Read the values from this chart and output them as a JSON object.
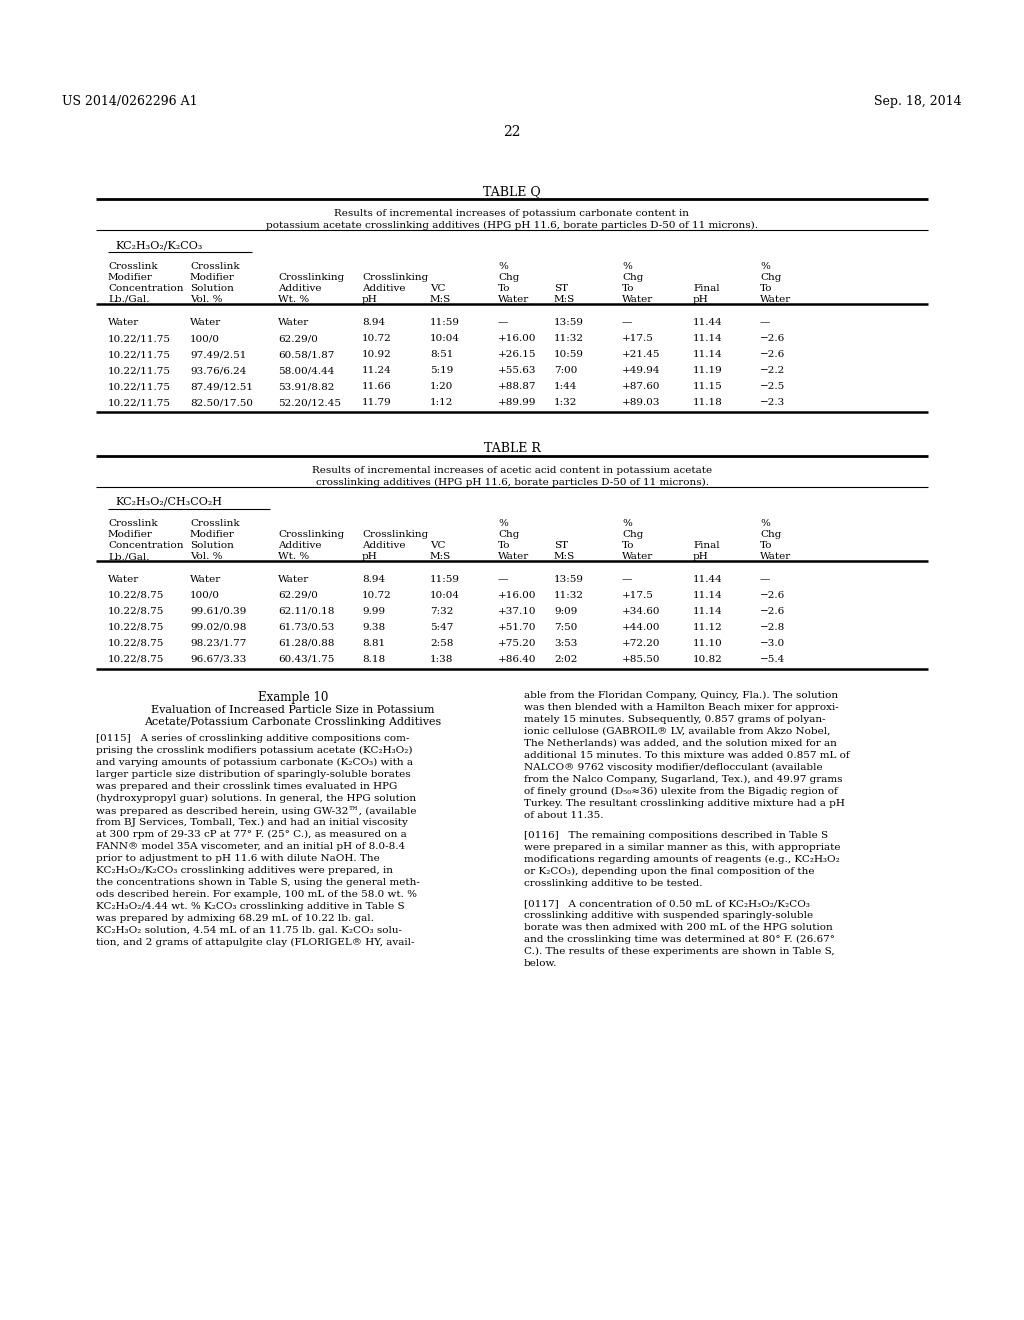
{
  "page_number": "22",
  "header_left": "US 2014/0262296 A1",
  "header_right": "Sep. 18, 2014",
  "background_color": "#ffffff",
  "table_q_title": "TABLE Q",
  "table_q_subtitle1": "Results of incremental increases of potassium carbonate content in",
  "table_q_subtitle2": "potassium acetate crosslinking additives (HPG pH 11.6, borate particles D-50 of 11 microns).",
  "table_q_label": "KC₂H₃O₂/K₂CO₃",
  "table_r_title": "TABLE R",
  "table_r_subtitle1": "Results of incremental increases of acetic acid content in potassium acetate",
  "table_r_subtitle2": "crosslinking additives (HPG pH 11.6, borate particles D-50 of 11 microns).",
  "table_r_label": "KC₂H₃O₂/CH₃CO₂H",
  "col_headers_l1": [
    "Crosslink",
    "Crosslink",
    "",
    "",
    "",
    "%",
    "",
    "%",
    "",
    "%"
  ],
  "col_headers_l2": [
    "Modifier",
    "Modifier",
    "Crosslinking",
    "Crosslinking",
    "",
    "Chg",
    "",
    "Chg",
    "",
    "Chg"
  ],
  "col_headers_l3": [
    "Concentration",
    "Solution",
    "Additive",
    "Additive",
    "VC",
    "To",
    "ST",
    "To",
    "Final",
    "To"
  ],
  "col_headers_l4": [
    "Lb./Gal.",
    "Vol. %",
    "Wt. %",
    "pH",
    "M:S",
    "Water",
    "M:S",
    "Water",
    "pH",
    "Water"
  ],
  "table_q_data": [
    [
      "Water",
      "Water",
      "Water",
      "8.94",
      "11:59",
      "—",
      "13:59",
      "—",
      "11.44",
      "—"
    ],
    [
      "10.22/11.75",
      "100/0",
      "62.29/0",
      "10.72",
      "10:04",
      "+16.00",
      "11:32",
      "+17.5",
      "11.14",
      "−2.6"
    ],
    [
      "10.22/11.75",
      "97.49/2.51",
      "60.58/1.87",
      "10.92",
      "8:51",
      "+26.15",
      "10:59",
      "+21.45",
      "11.14",
      "−2.6"
    ],
    [
      "10.22/11.75",
      "93.76/6.24",
      "58.00/4.44",
      "11.24",
      "5:19",
      "+55.63",
      "7:00",
      "+49.94",
      "11.19",
      "−2.2"
    ],
    [
      "10.22/11.75",
      "87.49/12.51",
      "53.91/8.82",
      "11.66",
      "1:20",
      "+88.87",
      "1:44",
      "+87.60",
      "11.15",
      "−2.5"
    ],
    [
      "10.22/11.75",
      "82.50/17.50",
      "52.20/12.45",
      "11.79",
      "1:12",
      "+89.99",
      "1:32",
      "+89.03",
      "11.18",
      "−2.3"
    ]
  ],
  "table_r_data": [
    [
      "Water",
      "Water",
      "Water",
      "8.94",
      "11:59",
      "—",
      "13:59",
      "—",
      "11.44",
      "—"
    ],
    [
      "10.22/8.75",
      "100/0",
      "62.29/0",
      "10.72",
      "10:04",
      "+16.00",
      "11:32",
      "+17.5",
      "11.14",
      "−2.6"
    ],
    [
      "10.22/8.75",
      "99.61/0.39",
      "62.11/0.18",
      "9.99",
      "7:32",
      "+37.10",
      "9:09",
      "+34.60",
      "11.14",
      "−2.6"
    ],
    [
      "10.22/8.75",
      "99.02/0.98",
      "61.73/0.53",
      "9.38",
      "5:47",
      "+51.70",
      "7:50",
      "+44.00",
      "11.12",
      "−2.8"
    ],
    [
      "10.22/8.75",
      "98.23/1.77",
      "61.28/0.88",
      "8.81",
      "2:58",
      "+75.20",
      "3:53",
      "+72.20",
      "11.10",
      "−3.0"
    ],
    [
      "10.22/8.75",
      "96.67/3.33",
      "60.43/1.75",
      "8.18",
      "1:38",
      "+86.40",
      "2:02",
      "+85.50",
      "10.82",
      "−5.4"
    ]
  ],
  "example10_title": "Example 10",
  "example10_sub1": "Evaluation of Increased Particle Size in Potassium",
  "example10_sub2": "Acetate/Potassium Carbonate Crosslinking Additives",
  "para115_left": [
    "[0115]   A series of crosslinking additive compositions com-",
    "prising the crosslink modifiers potassium acetate (KC₂H₃O₂)",
    "and varying amounts of potassium carbonate (K₂CO₃) with a",
    "larger particle size distribution of sparingly-soluble borates",
    "was prepared and their crosslink times evaluated in HPG",
    "(hydroxypropyl guar) solutions. In general, the HPG solution",
    "was prepared as described herein, using GW-32™, (available",
    "from BJ Services, Tomball, Tex.) and had an initial viscosity",
    "at 300 rpm of 29-33 cP at 77° F. (25° C.), as measured on a",
    "FANN® model 35A viscometer, and an initial pH of 8.0-8.4",
    "prior to adjustment to pH 11.6 with dilute NaOH. The",
    "KC₂H₃O₂/K₂CO₃ crosslinking additives were prepared, in",
    "the concentrations shown in Table S, using the general meth-",
    "ods described herein. For example, 100 mL of the 58.0 wt. %",
    "KC₂H₃O₂/4.44 wt. % K₂CO₃ crosslinking additive in Table S",
    "was prepared by admixing 68.29 mL of 10.22 lb. gal.",
    "KC₂H₃O₂ solution, 4.54 mL of an 11.75 lb. gal. K₂CO₃ solu-",
    "tion, and 2 grams of attapulgite clay (FLORIGEL® HY, avail-"
  ],
  "para115_right": [
    "able from the Floridan Company, Quincy, Fla.). The solution",
    "was then blended with a Hamilton Beach mixer for approxi-",
    "mately 15 minutes. Subsequently, 0.857 grams of polyan-",
    "ionic cellulose (GABROIL® LV, available from Akzo Nobel,",
    "The Netherlands) was added, and the solution mixed for an",
    "additional 15 minutes. To this mixture was added 0.857 mL of",
    "NALCO® 9762 viscosity modifier/deflocculant (available",
    "from the Nalco Company, Sugarland, Tex.), and 49.97 grams",
    "of finely ground (D₅₀≈36) ulexite from the Bigadiç region of",
    "Turkey. The resultant crosslinking additive mixture had a pH",
    "of about 11.35."
  ],
  "para116": [
    "[0116]   The remaining compositions described in Table S",
    "were prepared in a similar manner as this, with appropriate",
    "modifications regarding amounts of reagents (e.g., KC₂H₃O₂",
    "or K₂CO₃), depending upon the final composition of the",
    "crosslinking additive to be tested."
  ],
  "para117": [
    "[0117]   A concentration of 0.50 mL of KC₂H₃O₂/K₂CO₃",
    "crosslinking additive with suspended sparingly-soluble",
    "borate was then admixed with 200 mL of the HPG solution",
    "and the crosslinking time was determined at 80° F. (26.67°",
    "C.). The results of these experiments are shown in Table S,",
    "below."
  ]
}
